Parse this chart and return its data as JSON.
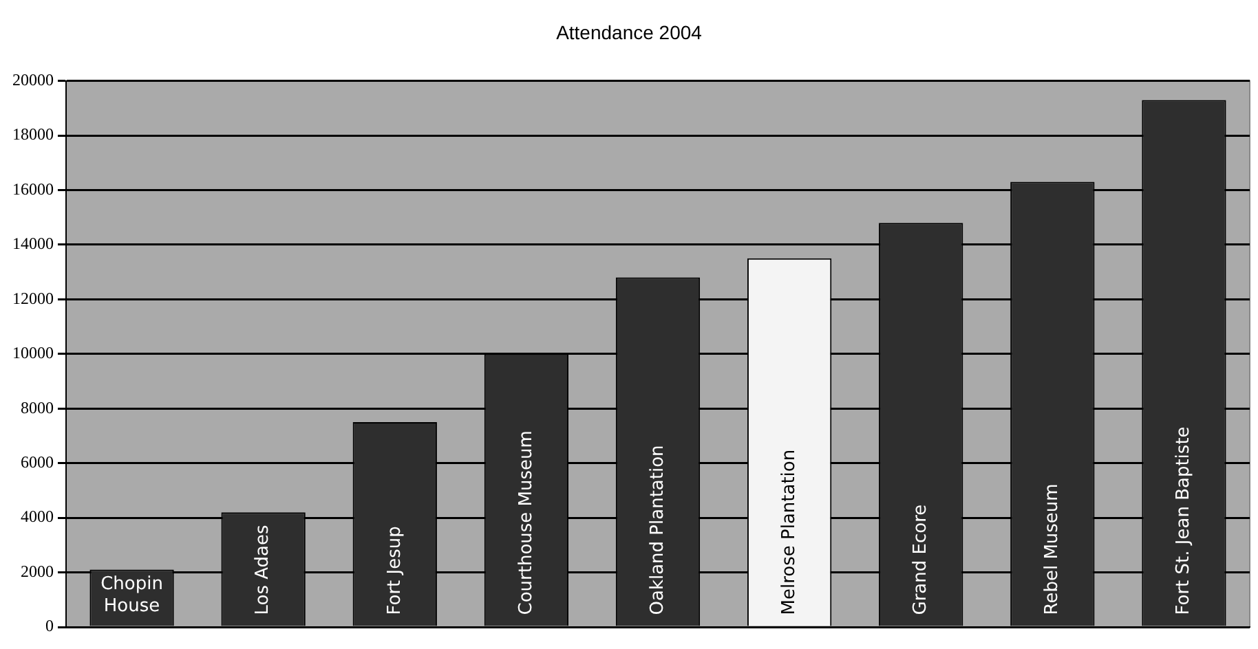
{
  "chart_data": {
    "type": "bar",
    "title": "Attendance 2004",
    "categories": [
      "Chopin House",
      "Los Adaes",
      "Fort Jesup",
      "Courthouse Museum",
      "Oakland Plantation",
      "Melrose Plantation",
      "Grand Ecore",
      "Rebel Museum",
      "Fort St. Jean Baptiste"
    ],
    "values": [
      2100,
      4200,
      7500,
      10000,
      12800,
      13500,
      14800,
      16300,
      19300
    ],
    "colors": [
      "#2e2e2e",
      "#2e2e2e",
      "#2e2e2e",
      "#2e2e2e",
      "#2e2e2e",
      "#f4f4f4",
      "#2e2e2e",
      "#2e2e2e",
      "#2e2e2e"
    ],
    "ylim": [
      0,
      20000
    ],
    "yticks": [
      0,
      2000,
      4000,
      6000,
      8000,
      10000,
      12000,
      14000,
      16000,
      18000,
      20000
    ],
    "grid": "y",
    "legend": false
  }
}
